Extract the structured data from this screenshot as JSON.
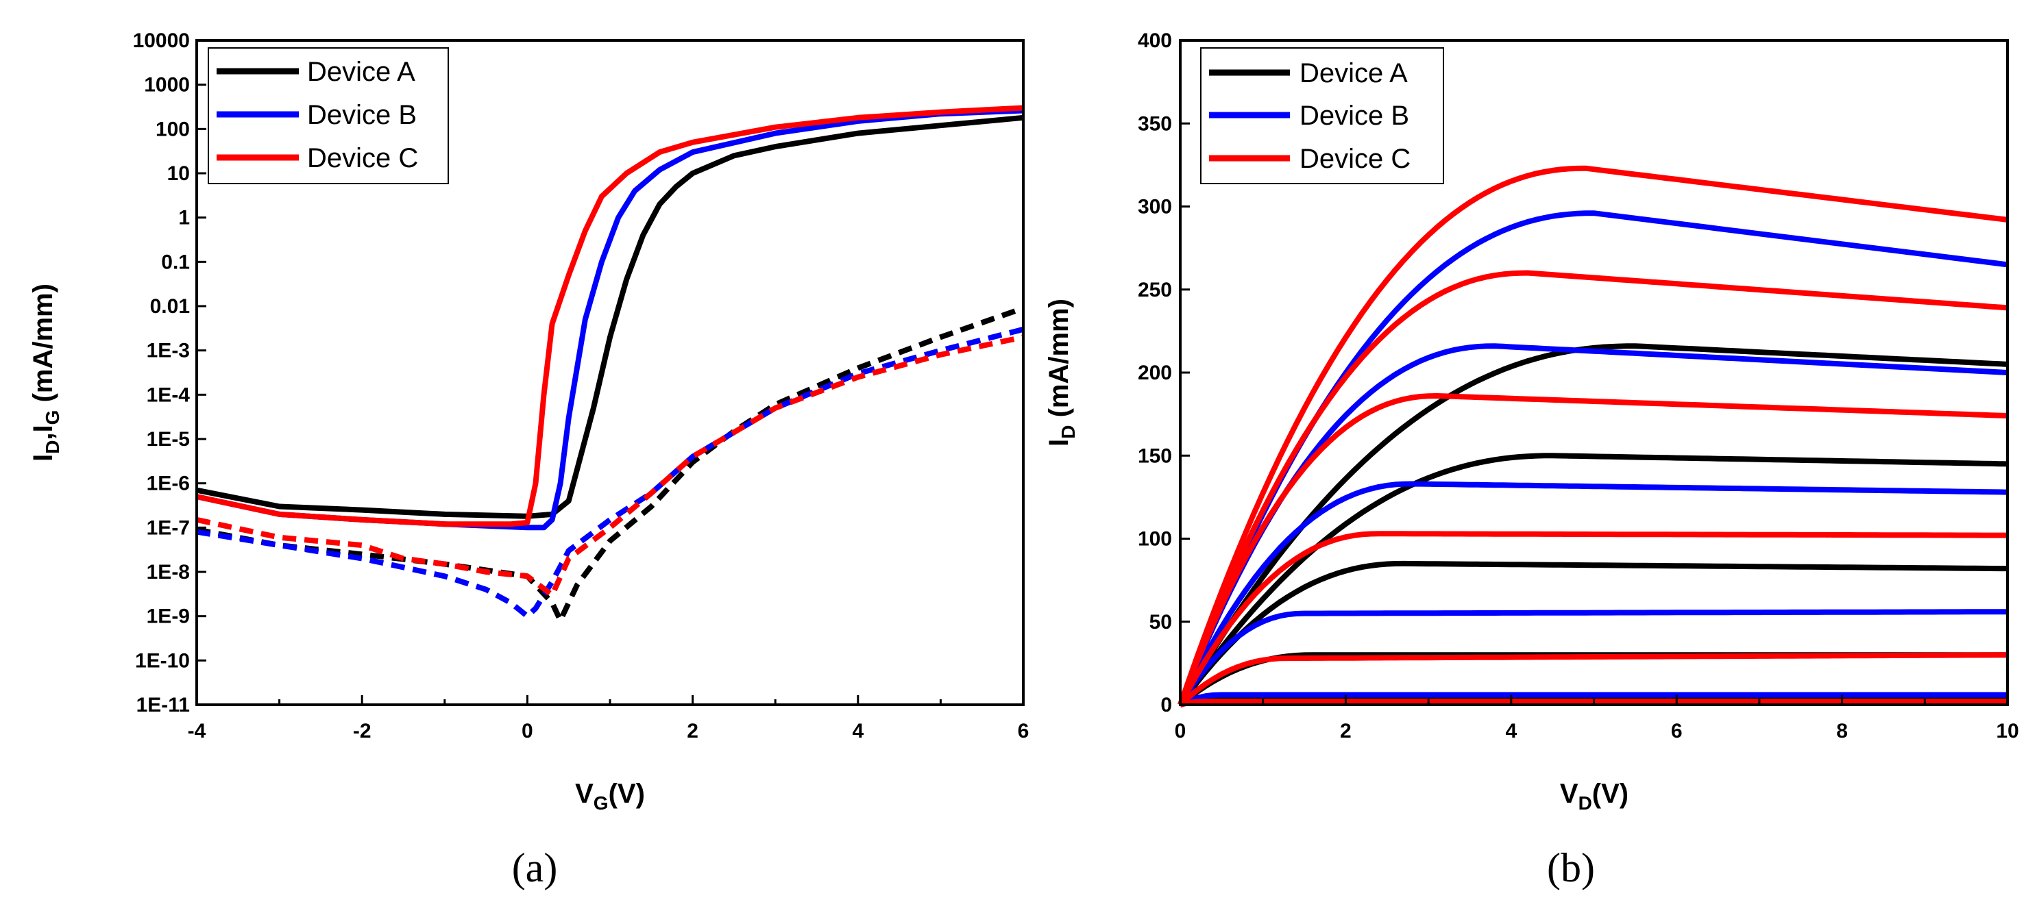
{
  "chart_data": [
    {
      "type": "line",
      "panel_label": "(a)",
      "xlabel": "V",
      "xlabel_sub": "G",
      "xlabel_unit": "(V)",
      "ylabel_prefix": "I",
      "ylabel_sub1": "D",
      "ylabel_sep": ",I",
      "ylabel_sub2": "G",
      "ylabel_unit": " (mA/mm)",
      "yscale": "log",
      "xlim": [
        -4,
        6
      ],
      "ylim": [
        1e-11,
        10000
      ],
      "x_ticks": [
        -4,
        -2,
        0,
        2,
        4,
        6
      ],
      "x_tick_labels": [
        "-4",
        "-2",
        "0",
        "2",
        "4",
        "6"
      ],
      "y_ticks": [
        1e-11,
        1e-10,
        1e-09,
        1e-08,
        1e-07,
        1e-06,
        1e-05,
        0.0001,
        0.001,
        0.01,
        0.1,
        1,
        10,
        100,
        1000,
        10000
      ],
      "y_tick_labels": [
        "1E-11",
        "1E-10",
        "1E-9",
        "1E-8",
        "1E-7",
        "1E-6",
        "1E-5",
        "1E-4",
        "1E-3",
        "0.01",
        "0.1",
        "1",
        "10",
        "100",
        "1000",
        "10000"
      ],
      "legend": {
        "placement": "top-left",
        "entries": [
          "Device A",
          "Device B",
          "Device C"
        ]
      },
      "series": [
        {
          "name": "Device A",
          "kind": "I_D",
          "style": "solid",
          "color": "#000000",
          "points": [
            [
              -4,
              7e-07
            ],
            [
              -3,
              3e-07
            ],
            [
              -2,
              2.5e-07
            ],
            [
              -1,
              2e-07
            ],
            [
              0,
              1.8e-07
            ],
            [
              0.3,
              2e-07
            ],
            [
              0.5,
              4e-07
            ],
            [
              0.6,
              2e-06
            ],
            [
              0.8,
              5e-05
            ],
            [
              1.0,
              0.002
            ],
            [
              1.2,
              0.04
            ],
            [
              1.4,
              0.4
            ],
            [
              1.6,
              2
            ],
            [
              1.8,
              5
            ],
            [
              2,
              10
            ],
            [
              2.5,
              25
            ],
            [
              3,
              40
            ],
            [
              4,
              80
            ],
            [
              5,
              120
            ],
            [
              6,
              180
            ]
          ]
        },
        {
          "name": "Device B",
          "kind": "I_D",
          "style": "solid",
          "color": "#0000ff",
          "points": [
            [
              -4,
              5e-07
            ],
            [
              -3,
              2e-07
            ],
            [
              -2,
              1.5e-07
            ],
            [
              -1,
              1.2e-07
            ],
            [
              0,
              1e-07
            ],
            [
              0.2,
              1e-07
            ],
            [
              0.3,
              1.5e-07
            ],
            [
              0.4,
              1e-06
            ],
            [
              0.5,
              3e-05
            ],
            [
              0.7,
              0.005
            ],
            [
              0.9,
              0.1
            ],
            [
              1.1,
              1
            ],
            [
              1.3,
              4
            ],
            [
              1.6,
              12
            ],
            [
              2,
              30
            ],
            [
              3,
              80
            ],
            [
              4,
              150
            ],
            [
              5,
              220
            ],
            [
              6,
              260
            ]
          ]
        },
        {
          "name": "Device C",
          "kind": "I_D",
          "style": "solid",
          "color": "#ff0000",
          "points": [
            [
              -4,
              5e-07
            ],
            [
              -3,
              2e-07
            ],
            [
              -2,
              1.5e-07
            ],
            [
              -1,
              1.2e-07
            ],
            [
              -0.2,
              1.2e-07
            ],
            [
              0,
              1.3e-07
            ],
            [
              0.1,
              1e-06
            ],
            [
              0.2,
              0.0001
            ],
            [
              0.3,
              0.004
            ],
            [
              0.5,
              0.05
            ],
            [
              0.7,
              0.5
            ],
            [
              0.9,
              3
            ],
            [
              1.2,
              10
            ],
            [
              1.6,
              30
            ],
            [
              2,
              50
            ],
            [
              3,
              110
            ],
            [
              4,
              180
            ],
            [
              5,
              240
            ],
            [
              6,
              300
            ]
          ]
        },
        {
          "name": "Device A",
          "kind": "I_G",
          "style": "dashed",
          "color": "#000000",
          "points": [
            [
              -4,
              9e-08
            ],
            [
              -3,
              4e-08
            ],
            [
              -2,
              2.5e-08
            ],
            [
              -1,
              1.5e-08
            ],
            [
              0,
              8e-09
            ],
            [
              0.3,
              2e-09
            ],
            [
              0.4,
              8e-10
            ],
            [
              0.6,
              5e-09
            ],
            [
              1,
              5e-08
            ],
            [
              1.5,
              3e-07
            ],
            [
              2,
              3e-06
            ],
            [
              2.5,
              1.5e-05
            ],
            [
              3,
              6e-05
            ],
            [
              4,
              0.0004
            ],
            [
              5,
              0.002
            ],
            [
              6,
              0.009
            ]
          ]
        },
        {
          "name": "Device B",
          "kind": "I_G",
          "style": "dashed",
          "color": "#0000ff",
          "points": [
            [
              -4,
              8e-08
            ],
            [
              -3,
              4e-08
            ],
            [
              -2,
              2e-08
            ],
            [
              -1,
              8e-09
            ],
            [
              -0.5,
              4e-09
            ],
            [
              -0.2,
              2e-09
            ],
            [
              0,
              1e-09
            ],
            [
              0.1,
              1.5e-09
            ],
            [
              0.3,
              6e-09
            ],
            [
              0.5,
              3e-08
            ],
            [
              1,
              1.5e-07
            ],
            [
              1.5,
              6e-07
            ],
            [
              2,
              4e-06
            ],
            [
              3,
              5e-05
            ],
            [
              4,
              0.0003
            ],
            [
              5,
              0.001
            ],
            [
              6,
              0.003
            ]
          ]
        },
        {
          "name": "Device C",
          "kind": "I_G",
          "style": "dashed",
          "color": "#ff0000",
          "points": [
            [
              -4,
              1.5e-07
            ],
            [
              -3,
              6e-08
            ],
            [
              -2,
              4e-08
            ],
            [
              -1.5,
              2e-08
            ],
            [
              -1,
              1.5e-08
            ],
            [
              -0.5,
              1e-08
            ],
            [
              0,
              8e-09
            ],
            [
              0.3,
              3e-09
            ],
            [
              0.5,
              2e-08
            ],
            [
              1,
              1e-07
            ],
            [
              1.5,
              6e-07
            ],
            [
              2,
              4e-06
            ],
            [
              3,
              5e-05
            ],
            [
              4,
              0.00025
            ],
            [
              5,
              0.0008
            ],
            [
              6,
              0.002
            ]
          ]
        }
      ]
    },
    {
      "type": "line",
      "panel_label": "(b)",
      "xlabel": "V",
      "xlabel_sub": "D",
      "xlabel_unit": "(V)",
      "ylabel_prefix": "I",
      "ylabel_sub1": "D",
      "ylabel_unit": " (mA/mm)",
      "xlim": [
        0,
        10
      ],
      "ylim": [
        0,
        400
      ],
      "x_ticks": [
        0,
        2,
        4,
        6,
        8,
        10
      ],
      "x_tick_labels": [
        "0",
        "2",
        "4",
        "6",
        "8",
        "10"
      ],
      "y_ticks": [
        0,
        50,
        100,
        150,
        200,
        250,
        300,
        350,
        400
      ],
      "y_tick_labels": [
        "0",
        "50",
        "100",
        "150",
        "200",
        "250",
        "300",
        "350",
        "400"
      ],
      "legend": {
        "placement": "top-left",
        "entries": [
          "Device A",
          "Device B",
          "Device C"
        ]
      },
      "series": [
        {
          "name": "Device A",
          "color": "#000000",
          "curves": [
            {
              "sat": 216,
              "knee": 5.5,
              "slope": 48,
              "end": 205
            },
            {
              "sat": 150,
              "knee": 4.5,
              "slope": 45,
              "end": 145
            },
            {
              "sat": 85,
              "knee": 2.7,
              "slope": 40,
              "end": 82
            },
            {
              "sat": 30,
              "knee": 1.6,
              "slope": 30,
              "end": 30
            },
            {
              "sat": 3,
              "knee": 0.4,
              "slope": 20,
              "end": 3
            }
          ]
        },
        {
          "name": "Device B",
          "color": "#0000ff",
          "curves": [
            {
              "sat": 296,
              "knee": 5,
              "slope": 72,
              "end": 265
            },
            {
              "sat": 216,
              "knee": 3.8,
              "slope": 70,
              "end": 200
            },
            {
              "sat": 133,
              "knee": 2.8,
              "slope": 60,
              "end": 128
            },
            {
              "sat": 55,
              "knee": 1.5,
              "slope": 45,
              "end": 56
            },
            {
              "sat": 6,
              "knee": 0.5,
              "slope": 25,
              "end": 6
            }
          ]
        },
        {
          "name": "Device C",
          "color": "#ff0000",
          "curves": [
            {
              "sat": 323,
              "knee": 4.9,
              "slope": 82,
              "end": 292
            },
            {
              "sat": 260,
              "knee": 4.2,
              "slope": 80,
              "end": 239
            },
            {
              "sat": 186,
              "knee": 3.1,
              "slope": 75,
              "end": 174
            },
            {
              "sat": 103,
              "knee": 2.4,
              "slope": 65,
              "end": 102
            },
            {
              "sat": 28,
              "knee": 1.3,
              "slope": 40,
              "end": 30
            },
            {
              "sat": 2,
              "knee": 0.3,
              "slope": 15,
              "end": 2
            }
          ]
        }
      ]
    }
  ]
}
